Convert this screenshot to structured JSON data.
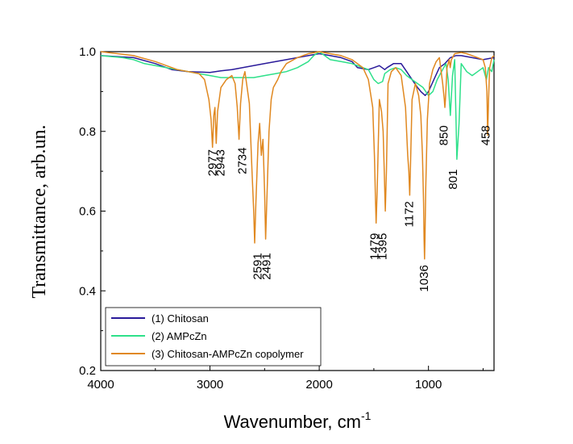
{
  "chart_data": {
    "type": "line",
    "xlabel": "Wavenumber, cm",
    "xlabel_sup": "-1",
    "ylabel": "Transmittance, arb.un.",
    "xlim": [
      4000,
      400
    ],
    "ylim": [
      0.2,
      1.0
    ],
    "x_ticks": [
      4000,
      3000,
      2000,
      1000
    ],
    "y_ticks": [
      0.2,
      0.4,
      0.6,
      0.8,
      1.0
    ],
    "y_tick_labels": [
      "0.2",
      "0.4",
      "0.6",
      "0.8",
      "1.0"
    ],
    "grid": false,
    "legend_position": "bottom-left",
    "series": [
      {
        "name": "(1) Chitosan",
        "color": "#2a1a9a",
        "x": [
          4000,
          3700,
          3500,
          3350,
          3200,
          3000,
          2900,
          2800,
          2700,
          2500,
          2300,
          2100,
          2000,
          1900,
          1800,
          1700,
          1650,
          1550,
          1500,
          1450,
          1400,
          1380,
          1320,
          1250,
          1200,
          1150,
          1100,
          1070,
          1030,
          1000,
          950,
          900,
          850,
          800,
          750,
          700,
          600,
          500,
          400
        ],
        "y": [
          0.99,
          0.985,
          0.97,
          0.955,
          0.95,
          0.948,
          0.952,
          0.955,
          0.96,
          0.97,
          0.98,
          0.99,
          0.995,
          0.99,
          0.985,
          0.975,
          0.96,
          0.955,
          0.96,
          0.965,
          0.955,
          0.96,
          0.97,
          0.97,
          0.95,
          0.93,
          0.91,
          0.9,
          0.89,
          0.9,
          0.93,
          0.96,
          0.97,
          0.985,
          0.99,
          0.99,
          0.985,
          0.98,
          0.985
        ]
      },
      {
        "name": "(2) AMPcZn",
        "color": "#2ee08a",
        "x": [
          4000,
          3800,
          3700,
          3600,
          3500,
          3400,
          3300,
          3200,
          3100,
          3000,
          2900,
          2800,
          2700,
          2600,
          2500,
          2400,
          2300,
          2200,
          2100,
          2050,
          2000,
          1950,
          1900,
          1800,
          1700,
          1650,
          1600,
          1550,
          1500,
          1460,
          1420,
          1400,
          1350,
          1300,
          1250,
          1200,
          1150,
          1100,
          1050,
          1000,
          960,
          920,
          880,
          840,
          820,
          800,
          780,
          760,
          740,
          720,
          700,
          650,
          600,
          550,
          500,
          470,
          450,
          420,
          400
        ],
        "y": [
          0.99,
          0.985,
          0.98,
          0.97,
          0.965,
          0.96,
          0.955,
          0.95,
          0.945,
          0.94,
          0.935,
          0.935,
          0.935,
          0.935,
          0.94,
          0.945,
          0.95,
          0.96,
          0.975,
          0.99,
          1.0,
          0.99,
          0.98,
          0.975,
          0.97,
          0.965,
          0.96,
          0.955,
          0.93,
          0.92,
          0.925,
          0.945,
          0.955,
          0.96,
          0.955,
          0.94,
          0.93,
          0.92,
          0.91,
          0.89,
          0.9,
          0.93,
          0.95,
          0.97,
          0.93,
          0.84,
          0.94,
          0.98,
          0.73,
          0.82,
          0.97,
          0.95,
          0.94,
          0.95,
          0.96,
          0.93,
          0.96,
          0.95,
          0.98
        ]
      },
      {
        "name": "(3) Chitosan-AMPcZn copolymer",
        "color": "#e08820",
        "x": [
          4000,
          3700,
          3500,
          3300,
          3200,
          3100,
          3050,
          3010,
          2990,
          2977,
          2965,
          2955,
          2943,
          2930,
          2900,
          2850,
          2800,
          2770,
          2750,
          2734,
          2720,
          2700,
          2680,
          2640,
          2615,
          2600,
          2591,
          2580,
          2560,
          2545,
          2530,
          2515,
          2500,
          2491,
          2480,
          2460,
          2440,
          2420,
          2380,
          2350,
          2300,
          2200,
          2100,
          2000,
          1900,
          1800,
          1700,
          1600,
          1550,
          1510,
          1495,
          1485,
          1479,
          1470,
          1450,
          1430,
          1415,
          1405,
          1395,
          1385,
          1370,
          1340,
          1300,
          1250,
          1210,
          1190,
          1180,
          1172,
          1165,
          1150,
          1120,
          1090,
          1070,
          1055,
          1045,
          1040,
          1036,
          1032,
          1025,
          1010,
          990,
          960,
          930,
          900,
          870,
          855,
          850,
          845,
          830,
          810,
          801,
          790,
          760,
          700,
          650,
          600,
          550,
          500,
          480,
          465,
          458,
          450,
          440,
          420,
          400
        ],
        "y": [
          1.0,
          0.99,
          0.975,
          0.955,
          0.95,
          0.945,
          0.93,
          0.88,
          0.83,
          0.76,
          0.84,
          0.86,
          0.77,
          0.85,
          0.91,
          0.93,
          0.94,
          0.92,
          0.86,
          0.78,
          0.87,
          0.93,
          0.95,
          0.87,
          0.7,
          0.6,
          0.52,
          0.62,
          0.77,
          0.82,
          0.74,
          0.78,
          0.65,
          0.53,
          0.62,
          0.8,
          0.88,
          0.91,
          0.93,
          0.95,
          0.97,
          0.985,
          0.995,
          1.0,
          0.995,
          0.99,
          0.98,
          0.96,
          0.93,
          0.86,
          0.74,
          0.63,
          0.57,
          0.65,
          0.88,
          0.85,
          0.8,
          0.7,
          0.6,
          0.7,
          0.92,
          0.95,
          0.96,
          0.94,
          0.86,
          0.74,
          0.7,
          0.64,
          0.71,
          0.88,
          0.92,
          0.89,
          0.84,
          0.74,
          0.62,
          0.53,
          0.48,
          0.53,
          0.66,
          0.83,
          0.92,
          0.955,
          0.975,
          0.985,
          0.92,
          0.88,
          0.86,
          0.88,
          0.96,
          0.98,
          0.96,
          0.98,
          0.995,
          0.998,
          0.995,
          0.99,
          0.985,
          0.98,
          0.96,
          0.9,
          0.79,
          0.88,
          0.96,
          0.985,
          0.99
        ]
      }
    ],
    "annotations": [
      {
        "text": "2977",
        "x": 2980,
        "y_top": 0.755
      },
      {
        "text": "2943",
        "x": 2905,
        "y_top": 0.755
      },
      {
        "text": "2734",
        "x": 2705,
        "y_top": 0.76
      },
      {
        "text": "2591",
        "x": 2565,
        "y_top": 0.495
      },
      {
        "text": "2491",
        "x": 2485,
        "y_top": 0.495
      },
      {
        "text": "1479",
        "x": 1495,
        "y_top": 0.545
      },
      {
        "text": "1395",
        "x": 1420,
        "y_top": 0.545
      },
      {
        "text": "1172",
        "x": 1178,
        "y_top": 0.625
      },
      {
        "text": "1036",
        "x": 1040,
        "y_top": 0.465
      },
      {
        "text": "850",
        "x": 860,
        "y_top": 0.815
      },
      {
        "text": "801",
        "x": 775,
        "y_top": 0.705
      },
      {
        "text": "458",
        "x": 478,
        "y_top": 0.815
      }
    ]
  }
}
